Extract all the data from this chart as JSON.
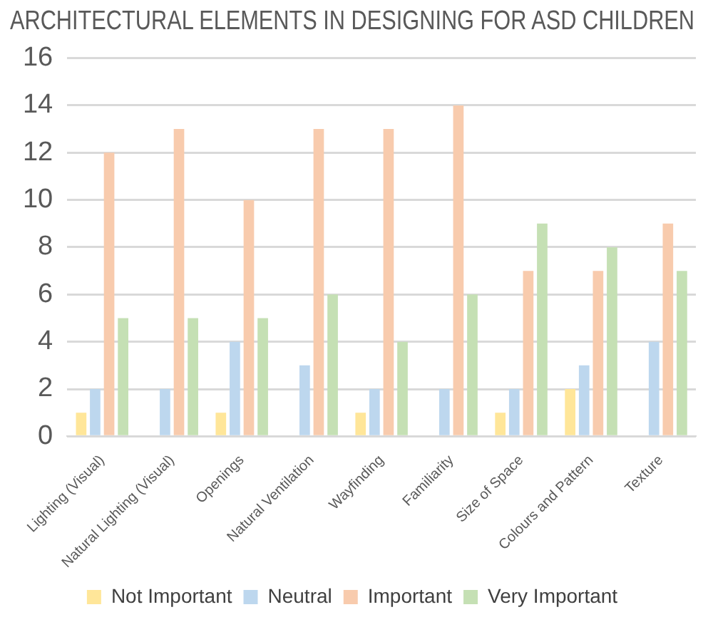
{
  "chart_data": {
    "type": "bar",
    "title": "ARCHITECTURAL ELEMENTS IN DESIGNING FOR ASD CHILDREN",
    "categories": [
      "Lighting (Visual)",
      "Natural Lighting (Visual)",
      "Openings",
      "Natural Ventilation",
      "Wayfinding",
      "Familiarity",
      "Size of Space",
      "Colours and Pattern",
      "Texture"
    ],
    "series": [
      {
        "name": "Not Important",
        "color": "#ffe699",
        "values": [
          1,
          0,
          1,
          0,
          1,
          0,
          1,
          2,
          0
        ]
      },
      {
        "name": "Neutral",
        "color": "#bdd7ee",
        "values": [
          2,
          2,
          4,
          3,
          2,
          2,
          2,
          3,
          4
        ]
      },
      {
        "name": "Important",
        "color": "#f8cbad",
        "values": [
          12,
          13,
          10,
          13,
          13,
          14,
          7,
          7,
          9
        ]
      },
      {
        "name": "Very Important",
        "color": "#c5e0b4",
        "values": [
          5,
          5,
          5,
          6,
          4,
          6,
          9,
          8,
          7
        ]
      }
    ],
    "ylim": [
      0,
      16
    ],
    "yticks": [
      0,
      2,
      4,
      6,
      8,
      10,
      12,
      14,
      16
    ],
    "grid": "y",
    "legend": "bottom"
  }
}
